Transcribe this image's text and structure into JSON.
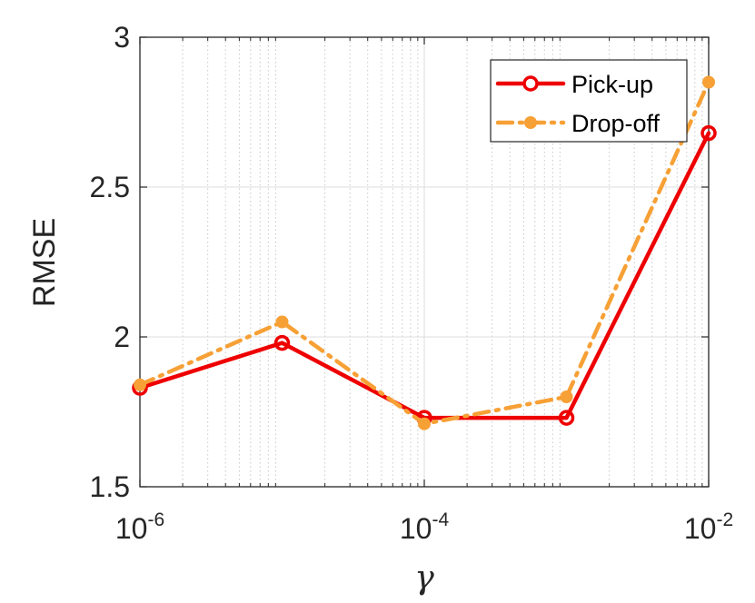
{
  "chart_data": {
    "type": "line",
    "xscale": "log",
    "xlim": [
      1e-06,
      0.01
    ],
    "ylim": [
      1.5,
      3
    ],
    "xlabel": "γ",
    "ylabel": "RMSE",
    "xticks": [
      {
        "base": "10",
        "exp": "-6",
        "value": 1e-06
      },
      {
        "base": "10",
        "exp": "-4",
        "value": 0.0001
      },
      {
        "base": "10",
        "exp": "-2",
        "value": 0.01
      }
    ],
    "yticks": [
      {
        "label": "1.5",
        "value": 1.5
      },
      {
        "label": "2",
        "value": 2
      },
      {
        "label": "2.5",
        "value": 2.5
      },
      {
        "label": "3",
        "value": 3
      }
    ],
    "grid": true,
    "minor_grid": true,
    "legend_position": "top-right",
    "x": [
      1e-06,
      1e-05,
      0.0001,
      0.001,
      0.01
    ],
    "series": [
      {
        "name": "Pick-up",
        "values": [
          1.83,
          1.98,
          1.73,
          1.73,
          2.68
        ],
        "color": "#ee0000",
        "style": "solid",
        "marker": "open-circle"
      },
      {
        "name": "Drop-off",
        "values": [
          1.84,
          2.05,
          1.71,
          1.8,
          2.85
        ],
        "color": "#f7a035",
        "style": "dash-dot",
        "marker": "filled-circle"
      }
    ]
  }
}
